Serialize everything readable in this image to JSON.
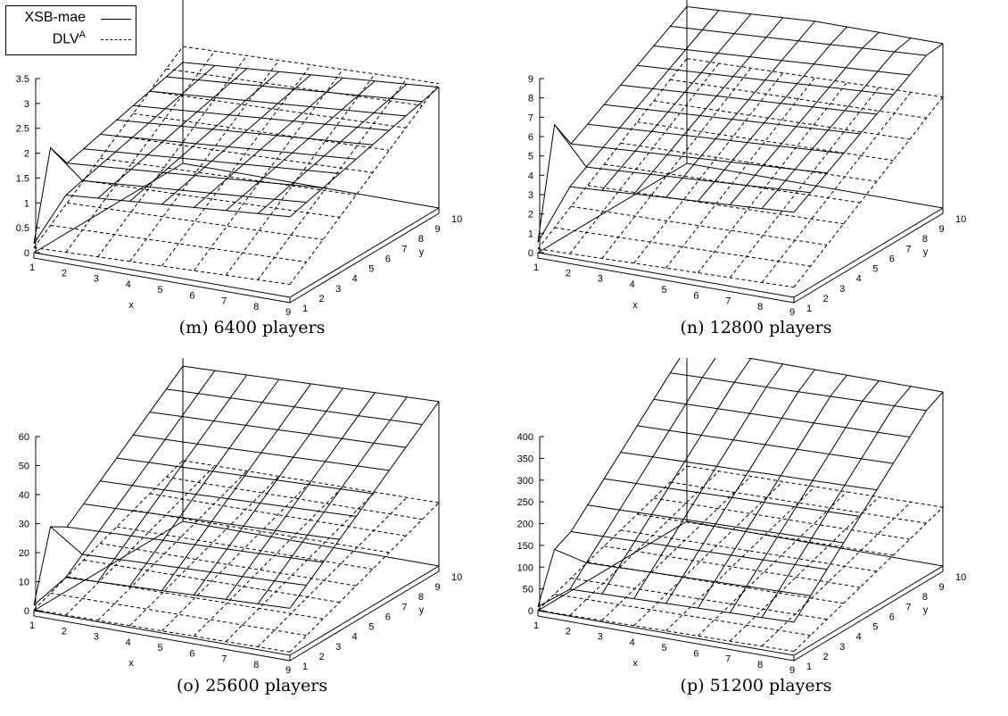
{
  "legend": {
    "series1": "XSB-mae",
    "series2_main": "DLV",
    "series2_sup": "A"
  },
  "chart_data": [
    {
      "type": "surface",
      "caption": "(m) 6400 players",
      "xlabel": "x",
      "ylabel": "y",
      "x_ticks": [
        1,
        2,
        3,
        4,
        5,
        6,
        7,
        8,
        9
      ],
      "y_ticks": [
        1,
        2,
        3,
        4,
        5,
        6,
        7,
        8,
        9,
        10
      ],
      "z_ticks": [
        0,
        0.5,
        1,
        1.5,
        2,
        2.5,
        3,
        3.5
      ],
      "zlim": [
        0,
        3.5
      ],
      "series": [
        {
          "name": "XSB-mae",
          "style": "solid",
          "base": 1.22,
          "corner_spike": 0.6,
          "x_slope": 0.05,
          "y_slope": 0.09,
          "top": 3.2
        },
        {
          "name": "DLVA",
          "style": "dashed",
          "base": 0.1,
          "x_slope": 0.02,
          "y_slope": 0.25,
          "top": 2.5
        }
      ]
    },
    {
      "type": "surface",
      "caption": "(n) 12800 players",
      "xlabel": "x",
      "ylabel": "y",
      "x_ticks": [
        1,
        2,
        3,
        4,
        5,
        6,
        7,
        8,
        9
      ],
      "y_ticks": [
        1,
        2,
        3,
        4,
        5,
        6,
        7,
        8,
        9,
        10
      ],
      "z_ticks": [
        0,
        1,
        2,
        3,
        4,
        5,
        6,
        7,
        8,
        9
      ],
      "zlim": [
        0,
        9
      ],
      "series": [
        {
          "name": "XSB-mae",
          "style": "solid",
          "base": 3.6,
          "corner_spike": 2.0,
          "x_slope": 0.1,
          "y_slope": 0.5,
          "top": 8.5
        },
        {
          "name": "DLVA",
          "style": "dashed",
          "base": 0.2,
          "x_slope": 0.04,
          "y_slope": 0.58,
          "top": 6.3
        }
      ]
    },
    {
      "type": "surface",
      "caption": "(o) 25600 players",
      "xlabel": "x",
      "ylabel": "y",
      "x_ticks": [
        1,
        2,
        3,
        4,
        5,
        6,
        7,
        8,
        9
      ],
      "y_ticks": [
        1,
        2,
        3,
        4,
        5,
        6,
        7,
        8,
        9,
        10
      ],
      "z_ticks": [
        0,
        10,
        20,
        30,
        40,
        50,
        60
      ],
      "zlim": [
        0,
        60
      ],
      "series": [
        {
          "name": "XSB-mae",
          "style": "solid",
          "base": 13,
          "corner_spike": 8,
          "x_slope": 0.4,
          "y_slope": 4.5,
          "top": 58
        },
        {
          "name": "DLVA",
          "style": "dashed",
          "base": 0.3,
          "x_slope": 0.1,
          "y_slope": 2.3,
          "top": 23
        }
      ]
    },
    {
      "type": "surface",
      "caption": "(p) 51200 players",
      "xlabel": "x",
      "ylabel": "y",
      "x_ticks": [
        1,
        2,
        3,
        4,
        5,
        6,
        7,
        8,
        9
      ],
      "y_ticks": [
        1,
        2,
        3,
        4,
        5,
        6,
        7,
        8,
        9,
        10
      ],
      "z_ticks": [
        0,
        50,
        100,
        150,
        200,
        250,
        300,
        350,
        400
      ],
      "zlim": [
        0,
        400
      ],
      "series": [
        {
          "name": "XSB-mae",
          "style": "solid",
          "base": 60,
          "corner_spike": 20,
          "x_slope": 2,
          "y_slope": 38,
          "top": 400
        },
        {
          "name": "DLVA",
          "style": "dashed",
          "base": 1,
          "x_slope": 1,
          "y_slope": 14,
          "top": 145
        }
      ]
    }
  ]
}
